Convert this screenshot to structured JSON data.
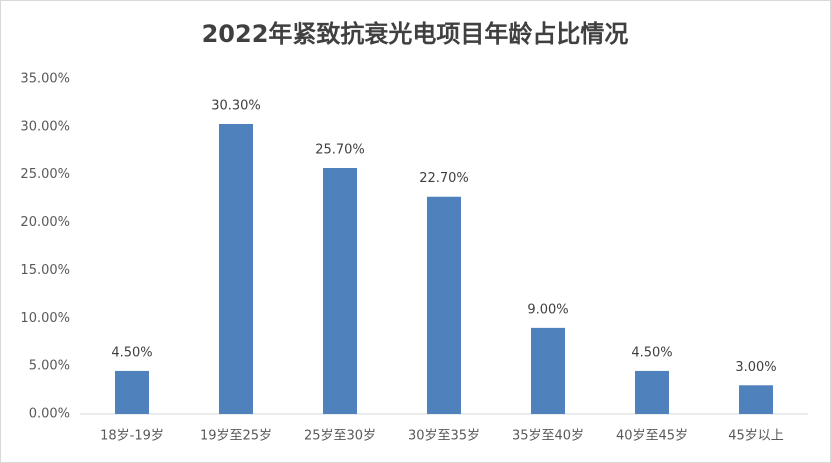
{
  "chart_data": {
    "type": "bar",
    "title": "2022年紧致抗衰光电项目年龄占比情况",
    "categories": [
      "18岁-19岁",
      "19岁至25岁",
      "25岁至30岁",
      "30岁至35岁",
      "35岁至40岁",
      "40岁至45岁",
      "45岁以上"
    ],
    "values": [
      4.5,
      30.3,
      25.7,
      22.7,
      9,
      4.5,
      3
    ],
    "value_labels": [
      "4.50%",
      "30.30%",
      "25.70%",
      "22.70%",
      "9.00%",
      "4.50%",
      "3.00%"
    ],
    "color": "#4f81bd",
    "ylim": [
      0,
      35
    ],
    "yticks": [
      {
        "value": 0,
        "label": "0.00%"
      },
      {
        "value": 5,
        "label": "5.00%"
      },
      {
        "value": 10,
        "label": "10.00%"
      },
      {
        "value": 15,
        "label": "15.00%"
      },
      {
        "value": 20,
        "label": "20.00%"
      },
      {
        "value": 25,
        "label": "25.00%"
      },
      {
        "value": 30,
        "label": "30.00%"
      },
      {
        "value": 35,
        "label": "35.00%"
      }
    ],
    "grid": false
  }
}
